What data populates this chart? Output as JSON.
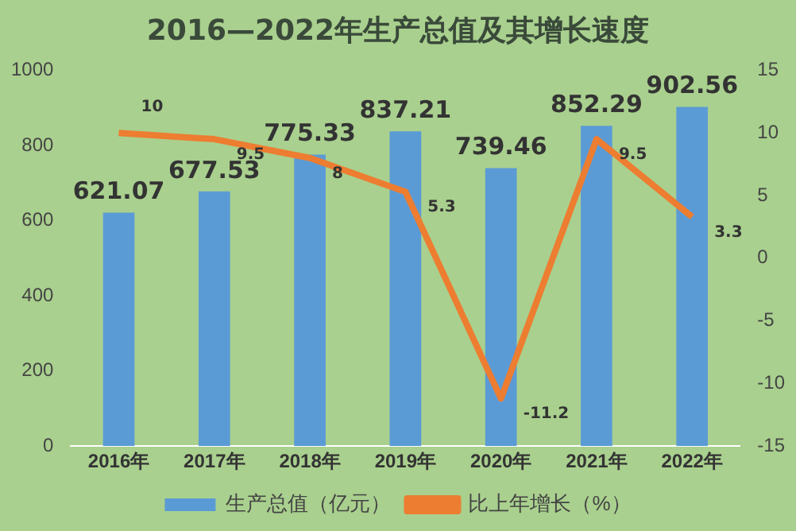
{
  "chart_data": {
    "type": "bar",
    "title": "2016—2022年生产总值及其增长速度",
    "categories": [
      "2016年",
      "2017年",
      "2018年",
      "2019年",
      "2020年",
      "2021年",
      "2022年"
    ],
    "series": [
      {
        "name": "生产总值（亿元）",
        "color": "#5b9bd5",
        "values": [
          621.07,
          677.53,
          775.33,
          837.21,
          739.46,
          852.29,
          902.56
        ]
      },
      {
        "name": "比上年增长（%）",
        "type": "line",
        "axis": "y2",
        "color": "#ed7d31",
        "values": [
          10,
          9.5,
          8,
          5.3,
          -11.2,
          9.5,
          3.3
        ]
      }
    ],
    "ylim": [
      0,
      1000
    ],
    "yticks": [
      0,
      200,
      400,
      600,
      800,
      1000
    ],
    "y2lim": [
      -15,
      15
    ],
    "y2ticks": [
      -15,
      -10,
      -5,
      0,
      5,
      10,
      15
    ],
    "data_labels": true,
    "grid": false,
    "legend": "bottom",
    "marker": "none",
    "line_style": "solid"
  }
}
